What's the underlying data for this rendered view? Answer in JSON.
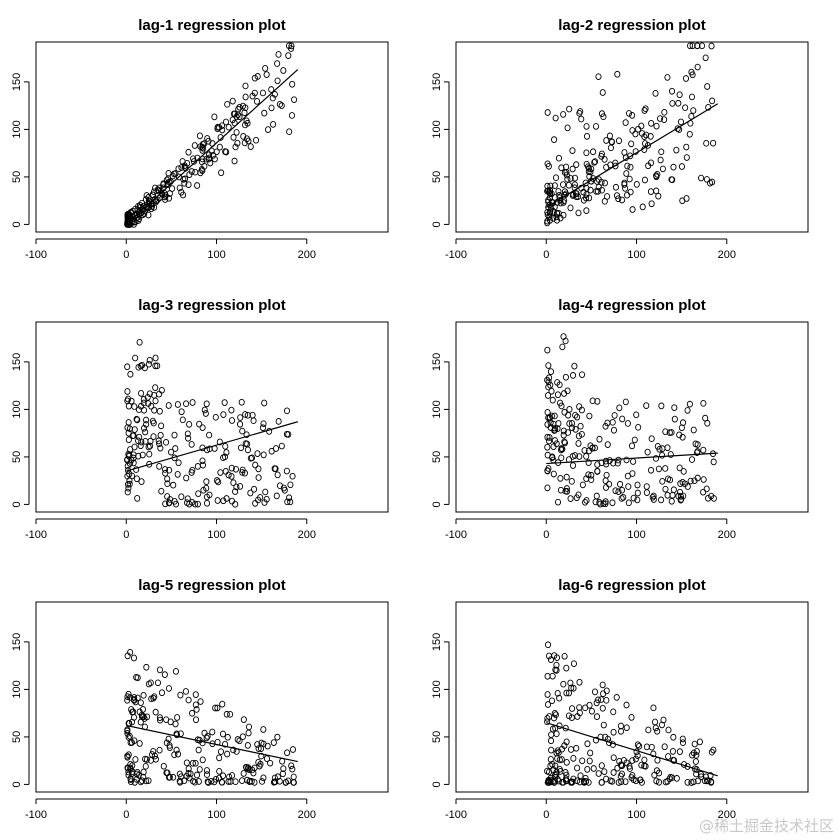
{
  "watermark": "@稀土掘金技术社区",
  "chart_data": [
    {
      "type": "scatter",
      "title": "lag-1 regression plot",
      "xlim": [
        -100,
        290
      ],
      "ylim": [
        -8,
        192
      ],
      "xticks": [
        -100,
        0,
        100,
        200
      ],
      "yticks": [
        0,
        50,
        100,
        150
      ],
      "fit_line": {
        "x": [
          0,
          190
        ],
        "y": [
          0,
          163
        ]
      },
      "seed": 11,
      "pattern": "linear"
    },
    {
      "type": "scatter",
      "title": "lag-2 regression plot",
      "xlim": [
        -100,
        290
      ],
      "ylim": [
        -8,
        192
      ],
      "xticks": [
        -100,
        0,
        100,
        200
      ],
      "yticks": [
        0,
        50,
        100,
        150
      ],
      "fit_line": {
        "x": [
          0,
          190
        ],
        "y": [
          18,
          127
        ]
      },
      "seed": 23,
      "pattern": "fan"
    },
    {
      "type": "scatter",
      "title": "lag-3 regression plot",
      "xlim": [
        -100,
        290
      ],
      "ylim": [
        -8,
        192
      ],
      "xticks": [
        -100,
        0,
        100,
        200
      ],
      "yticks": [
        0,
        50,
        100,
        150
      ],
      "fit_line": {
        "x": [
          0,
          190
        ],
        "y": [
          35,
          87
        ]
      },
      "seed": 37,
      "pattern": "cloud"
    },
    {
      "type": "scatter",
      "title": "lag-4 regression plot",
      "xlim": [
        -100,
        290
      ],
      "ylim": [
        -8,
        192
      ],
      "xticks": [
        -100,
        0,
        100,
        200
      ],
      "yticks": [
        0,
        50,
        100,
        150
      ],
      "fit_line": {
        "x": [
          0,
          190
        ],
        "y": [
          43,
          54
        ]
      },
      "seed": 41,
      "pattern": "cloud"
    },
    {
      "type": "scatter",
      "title": "lag-5 regression plot",
      "xlim": [
        -100,
        290
      ],
      "ylim": [
        -8,
        192
      ],
      "xticks": [
        -100,
        0,
        100,
        200
      ],
      "yticks": [
        0,
        50,
        100,
        150
      ],
      "fit_line": {
        "x": [
          0,
          190
        ],
        "y": [
          62,
          24
        ]
      },
      "seed": 53,
      "pattern": "decay"
    },
    {
      "type": "scatter",
      "title": "lag-6 regression plot",
      "xlim": [
        -100,
        290
      ],
      "ylim": [
        -8,
        192
      ],
      "xticks": [
        -100,
        0,
        100,
        200
      ],
      "yticks": [
        0,
        50,
        100,
        150
      ],
      "fit_line": {
        "x": [
          0,
          190
        ],
        "y": [
          65,
          9
        ]
      },
      "seed": 67,
      "pattern": "decay"
    }
  ]
}
